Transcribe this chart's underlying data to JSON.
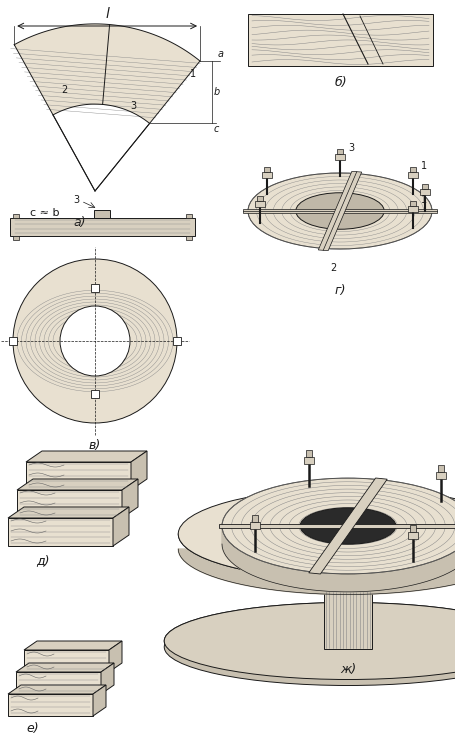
{
  "background_color": "#ffffff",
  "line_color": "#1a1a1a",
  "wood_color_light": "#e8e0d0",
  "wood_color_mid": "#d8d0c0",
  "wood_color_dark": "#c8c0b0",
  "grain_color": "#888888",
  "grain_color_dark": "#666666",
  "label_fontsize": 9,
  "annotation_fontsize": 7,
  "labels": {
    "a": "а)",
    "b": "б)",
    "v": "в)",
    "g": "г)",
    "d": "д)",
    "e": "е)",
    "zh": "ж)"
  }
}
